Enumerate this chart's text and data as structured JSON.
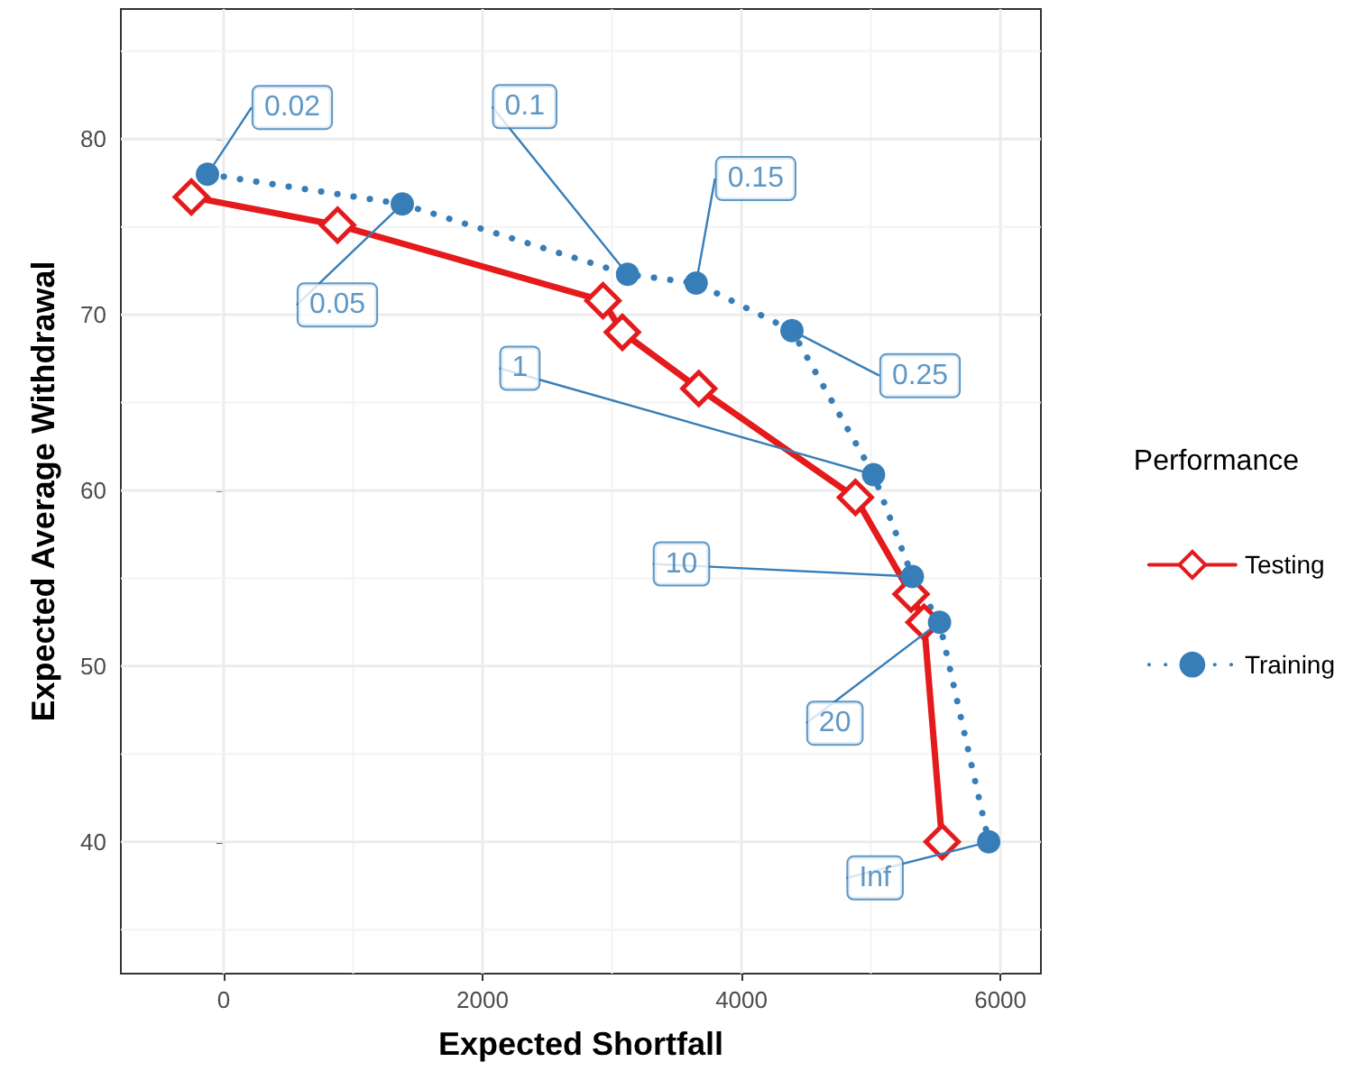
{
  "chart_data": {
    "type": "line",
    "xlabel": "Expected Shortfall",
    "ylabel": "Expected Average Withdrawal",
    "legend_title": "Performance",
    "series": [
      {
        "name": "Testing",
        "color": "#e41a1c",
        "marker": "diamond",
        "line_style": "solid",
        "x": [
          -250,
          880,
          2930,
          3080,
          3670,
          4880,
          5310,
          5410,
          5550
        ],
        "values": [
          76.7,
          75.1,
          70.8,
          69.0,
          65.8,
          59.6,
          54.1,
          52.5,
          40.0
        ]
      },
      {
        "name": "Training",
        "color": "#377eb8",
        "marker": "circle",
        "line_style": "dotted",
        "x": [
          -125,
          1380,
          3120,
          3650,
          4390,
          5020,
          5320,
          5530,
          5910
        ],
        "values": [
          78.0,
          76.3,
          72.3,
          71.8,
          69.1,
          60.9,
          55.1,
          52.5,
          40.0
        ]
      }
    ],
    "annotations": [
      {
        "text": "0.02",
        "x": -125,
        "y": 78.0
      },
      {
        "text": "0.05",
        "x": 1380,
        "y": 76.3
      },
      {
        "text": "0.1",
        "x": 3120,
        "y": 72.3
      },
      {
        "text": "0.15",
        "x": 3650,
        "y": 71.8
      },
      {
        "text": "0.25",
        "x": 4390,
        "y": 69.1
      },
      {
        "text": "1",
        "x": 5020,
        "y": 60.9
      },
      {
        "text": "10",
        "x": 5320,
        "y": 55.1
      },
      {
        "text": "20",
        "x": 5530,
        "y": 52.5
      },
      {
        "text": "Inf",
        "x": 5910,
        "y": 40.0
      }
    ],
    "xlim": [
      -794,
      6313
    ],
    "xticks": [
      0,
      2000,
      4000,
      6000
    ],
    "ylim": [
      32.5,
      87.4
    ],
    "yticks": [
      40,
      50,
      60,
      70,
      80
    ],
    "grid": true,
    "legend": "right"
  }
}
